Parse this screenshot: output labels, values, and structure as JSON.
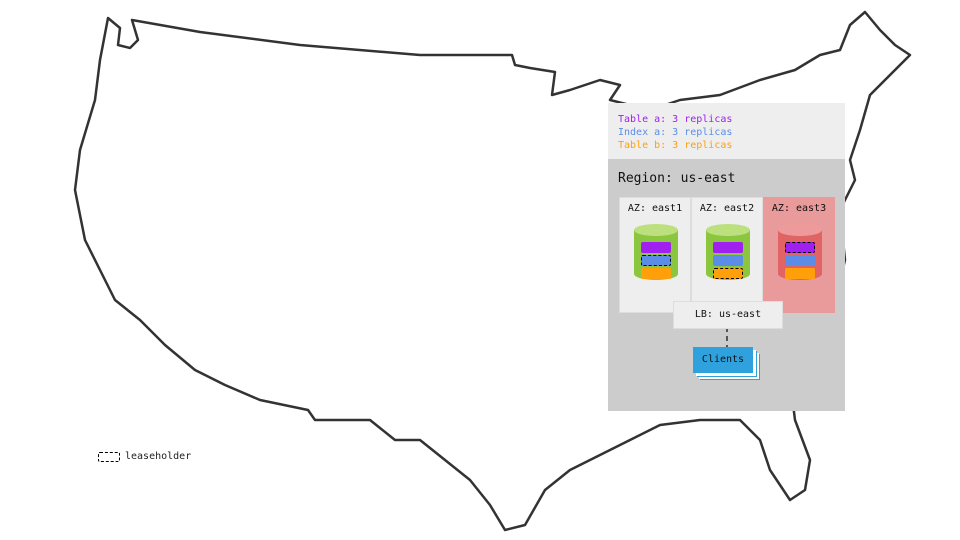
{
  "legend": {
    "label": "leaseholder"
  },
  "summary": [
    {
      "text": "Table a: 3 replicas",
      "color": "#a020f0"
    },
    {
      "text": "Index a: 3 replicas",
      "color": "#5b8de8"
    },
    {
      "text": "Table b: 3 replicas",
      "color": "#ff9f0a"
    }
  ],
  "region": {
    "label": "Region: us-east"
  },
  "azs": [
    {
      "label": "AZ: east1",
      "status": "healthy",
      "leaseholder": "Index a"
    },
    {
      "label": "AZ: east2",
      "status": "healthy",
      "leaseholder": "Table b"
    },
    {
      "label": "AZ: east3",
      "status": "failed",
      "leaseholder": "Table a"
    }
  ],
  "lb": {
    "label": "LB: us-east"
  },
  "clients": {
    "label": "Clients"
  },
  "colors": {
    "healthy": "#8cc63f",
    "failed": "#e06464",
    "clients": "#2fa2de"
  }
}
